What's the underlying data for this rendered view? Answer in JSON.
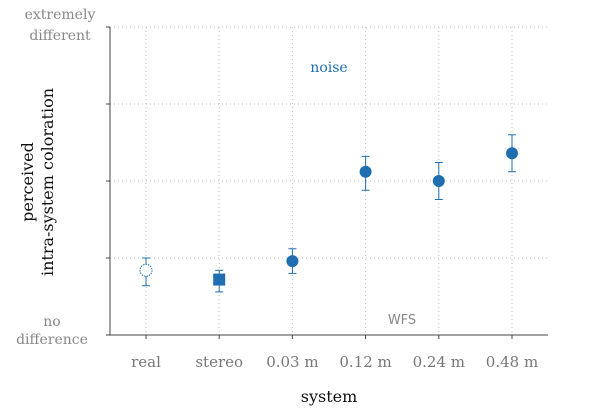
{
  "chart_data": {
    "type": "scatter",
    "categories": [
      "real",
      "stereo",
      "0.03 m",
      "0.12 m",
      "0.24 m",
      "0.48 m"
    ],
    "xlabel": "system",
    "ylabel_lines": [
      "perceived",
      "intra-system coloration"
    ],
    "y_end_labels": {
      "top": [
        "extremely",
        "different"
      ],
      "bottom": [
        "no",
        "difference"
      ]
    },
    "ylim": [
      0,
      1
    ],
    "yticks": [
      0,
      0.25,
      0.5,
      0.75,
      1
    ],
    "grid": true,
    "points": [
      {
        "category": "real",
        "value": 0.21,
        "err_low": 0.16,
        "err_high": 0.25,
        "marker": "open-circle"
      },
      {
        "category": "stereo",
        "value": 0.18,
        "err_low": 0.14,
        "err_high": 0.21,
        "marker": "square"
      },
      {
        "category": "0.03 m",
        "value": 0.24,
        "err_low": 0.2,
        "err_high": 0.28,
        "marker": "circle"
      },
      {
        "category": "0.12 m",
        "value": 0.53,
        "err_low": 0.47,
        "err_high": 0.58,
        "marker": "circle"
      },
      {
        "category": "0.24 m",
        "value": 0.5,
        "err_low": 0.44,
        "err_high": 0.56,
        "marker": "circle"
      },
      {
        "category": "0.48 m",
        "value": 0.59,
        "err_low": 0.53,
        "err_high": 0.65,
        "marker": "circle"
      }
    ],
    "annotations": {
      "noise": "noise",
      "wfs": "WFS"
    },
    "colors": {
      "series": "#1f6eb0",
      "axis": "#444444",
      "grid": "#bdbdbd"
    }
  }
}
